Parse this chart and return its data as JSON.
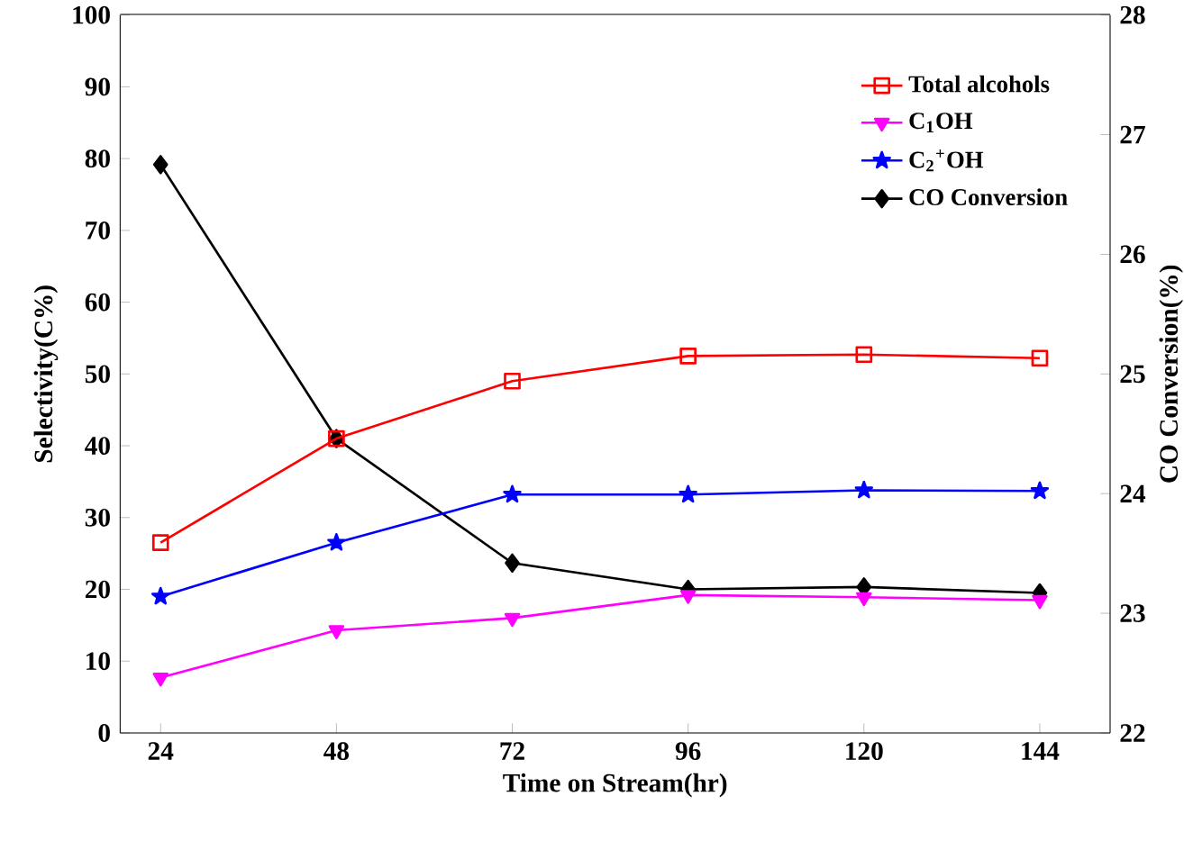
{
  "chart_data": {
    "type": "line",
    "categories": [
      "24",
      "48",
      "72",
      "96",
      "120",
      "144"
    ],
    "xlabel": "Time on Stream(hr)",
    "ylabel": "Selectivity(C%)",
    "y2label": "CO Conversion(%)",
    "ylim": [
      0,
      100
    ],
    "yticks": [
      0,
      10,
      20,
      30,
      40,
      50,
      60,
      70,
      80,
      90,
      100
    ],
    "y2lim": [
      22,
      28
    ],
    "y2ticks": [
      22,
      23,
      24,
      25,
      26,
      27,
      28
    ],
    "legend": "top right",
    "grid": false,
    "line_style": "solid",
    "series": [
      {
        "name": "Total alcohols",
        "color": "#ff0000",
        "marker": "square",
        "values": [
          26.5,
          41,
          49,
          52.5,
          52.7,
          52.2
        ]
      },
      {
        "name": "C$_{1}$OH",
        "color": "#ff00ff",
        "marker": "triangle",
        "values": [
          7.7,
          14.3,
          16,
          19.2,
          18.9,
          18.5
        ]
      },
      {
        "name": "C$_{2}$$^{+}$OH",
        "color": "#0000ff",
        "marker": "star",
        "values": [
          19,
          26.5,
          33.2,
          33.2,
          33.8,
          33.7
        ]
      },
      {
        "name": "CO Conversion",
        "color": "#000000",
        "marker": "diamond",
        "axis": "y2",
        "values": [
          26.75,
          24.46,
          23.42,
          23.2,
          23.22,
          23.17
        ]
      }
    ]
  }
}
